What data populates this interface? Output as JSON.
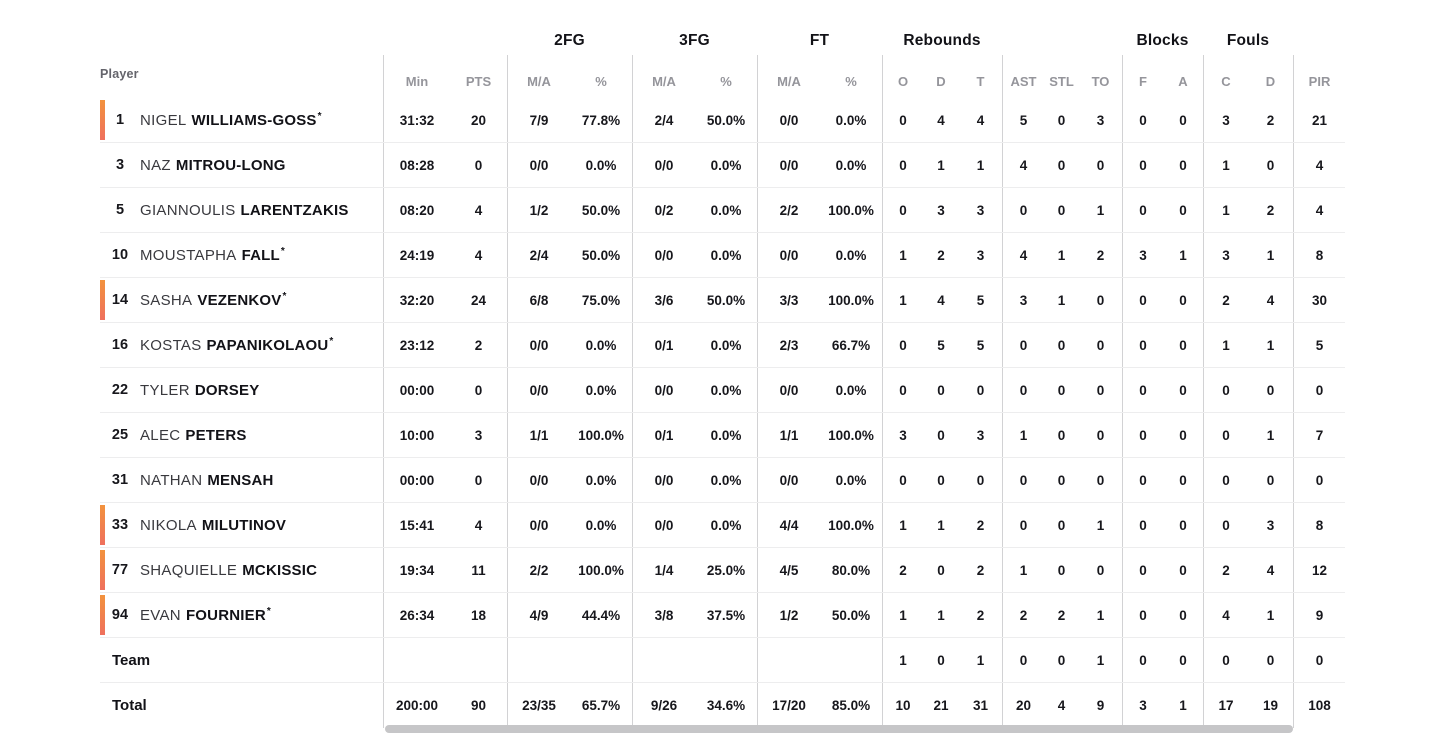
{
  "header": {
    "player_label": "Player",
    "groups": [
      {
        "label": "",
        "span": 3
      },
      {
        "label": "2FG",
        "span": 2
      },
      {
        "label": "3FG",
        "span": 2
      },
      {
        "label": "FT",
        "span": 2
      },
      {
        "label": "Rebounds",
        "span": 3
      },
      {
        "label": "",
        "span": 3
      },
      {
        "label": "Blocks",
        "span": 2
      },
      {
        "label": "Fouls",
        "span": 2
      },
      {
        "label": "",
        "span": 1
      }
    ],
    "stat_columns": [
      "Min",
      "PTS",
      "M/A",
      "%",
      "M/A",
      "%",
      "M/A",
      "%",
      "O",
      "D",
      "T",
      "AST",
      "STL",
      "TO",
      "F",
      "A",
      "C",
      "D",
      "PIR"
    ],
    "stat_keys": [
      "min",
      "pts",
      "2fg-ma",
      "2fg-pct",
      "3fg-ma",
      "3fg-pct",
      "ft-ma",
      "ft-pct",
      "reb-o",
      "reb-d",
      "reb-t",
      "ast",
      "stl",
      "to",
      "blk-f",
      "blk-a",
      "foul-c",
      "foul-d",
      "pir"
    ]
  },
  "players": [
    {
      "number": "1",
      "first_name": "NIGEL",
      "last_name": "WILLIAMS-GOSS",
      "starter": true,
      "on_court": true,
      "stats": [
        "31:32",
        "20",
        "7/9",
        "77.8%",
        "2/4",
        "50.0%",
        "0/0",
        "0.0%",
        "0",
        "4",
        "4",
        "5",
        "0",
        "3",
        "0",
        "0",
        "3",
        "2",
        "21"
      ]
    },
    {
      "number": "3",
      "first_name": "NAZ",
      "last_name": "MITROU-LONG",
      "starter": false,
      "on_court": false,
      "stats": [
        "08:28",
        "0",
        "0/0",
        "0.0%",
        "0/0",
        "0.0%",
        "0/0",
        "0.0%",
        "0",
        "1",
        "1",
        "4",
        "0",
        "0",
        "0",
        "0",
        "1",
        "0",
        "4"
      ]
    },
    {
      "number": "5",
      "first_name": "GIANNOULIS",
      "last_name": "LARENTZAKIS",
      "starter": false,
      "on_court": false,
      "stats": [
        "08:20",
        "4",
        "1/2",
        "50.0%",
        "0/2",
        "0.0%",
        "2/2",
        "100.0%",
        "0",
        "3",
        "3",
        "0",
        "0",
        "1",
        "0",
        "0",
        "1",
        "2",
        "4"
      ]
    },
    {
      "number": "10",
      "first_name": "MOUSTAPHA",
      "last_name": "FALL",
      "starter": true,
      "on_court": false,
      "stats": [
        "24:19",
        "4",
        "2/4",
        "50.0%",
        "0/0",
        "0.0%",
        "0/0",
        "0.0%",
        "1",
        "2",
        "3",
        "4",
        "1",
        "2",
        "3",
        "1",
        "3",
        "1",
        "8"
      ]
    },
    {
      "number": "14",
      "first_name": "SASHA",
      "last_name": "VEZENKOV",
      "starter": true,
      "on_court": true,
      "stats": [
        "32:20",
        "24",
        "6/8",
        "75.0%",
        "3/6",
        "50.0%",
        "3/3",
        "100.0%",
        "1",
        "4",
        "5",
        "3",
        "1",
        "0",
        "0",
        "0",
        "2",
        "4",
        "30"
      ]
    },
    {
      "number": "16",
      "first_name": "KOSTAS",
      "last_name": "PAPANIKOLAOU",
      "starter": true,
      "on_court": false,
      "stats": [
        "23:12",
        "2",
        "0/0",
        "0.0%",
        "0/1",
        "0.0%",
        "2/3",
        "66.7%",
        "0",
        "5",
        "5",
        "0",
        "0",
        "0",
        "0",
        "0",
        "1",
        "1",
        "5"
      ]
    },
    {
      "number": "22",
      "first_name": "TYLER",
      "last_name": "DORSEY",
      "starter": false,
      "on_court": false,
      "stats": [
        "00:00",
        "0",
        "0/0",
        "0.0%",
        "0/0",
        "0.0%",
        "0/0",
        "0.0%",
        "0",
        "0",
        "0",
        "0",
        "0",
        "0",
        "0",
        "0",
        "0",
        "0",
        "0"
      ]
    },
    {
      "number": "25",
      "first_name": "ALEC",
      "last_name": "PETERS",
      "starter": false,
      "on_court": false,
      "stats": [
        "10:00",
        "3",
        "1/1",
        "100.0%",
        "0/1",
        "0.0%",
        "1/1",
        "100.0%",
        "3",
        "0",
        "3",
        "1",
        "0",
        "0",
        "0",
        "0",
        "0",
        "1",
        "7"
      ]
    },
    {
      "number": "31",
      "first_name": "NATHAN",
      "last_name": "MENSAH",
      "starter": false,
      "on_court": false,
      "stats": [
        "00:00",
        "0",
        "0/0",
        "0.0%",
        "0/0",
        "0.0%",
        "0/0",
        "0.0%",
        "0",
        "0",
        "0",
        "0",
        "0",
        "0",
        "0",
        "0",
        "0",
        "0",
        "0"
      ]
    },
    {
      "number": "33",
      "first_name": "NIKOLA",
      "last_name": "MILUTINOV",
      "starter": false,
      "on_court": true,
      "stats": [
        "15:41",
        "4",
        "0/0",
        "0.0%",
        "0/0",
        "0.0%",
        "4/4",
        "100.0%",
        "1",
        "1",
        "2",
        "0",
        "0",
        "1",
        "0",
        "0",
        "0",
        "3",
        "8"
      ]
    },
    {
      "number": "77",
      "first_name": "SHAQUIELLE",
      "last_name": "MCKISSIC",
      "starter": false,
      "on_court": true,
      "stats": [
        "19:34",
        "11",
        "2/2",
        "100.0%",
        "1/4",
        "25.0%",
        "4/5",
        "80.0%",
        "2",
        "0",
        "2",
        "1",
        "0",
        "0",
        "0",
        "0",
        "2",
        "4",
        "12"
      ]
    },
    {
      "number": "94",
      "first_name": "EVAN",
      "last_name": "FOURNIER",
      "starter": true,
      "on_court": true,
      "stats": [
        "26:34",
        "18",
        "4/9",
        "44.4%",
        "3/8",
        "37.5%",
        "1/2",
        "50.0%",
        "1",
        "1",
        "2",
        "2",
        "2",
        "1",
        "0",
        "0",
        "4",
        "1",
        "9"
      ]
    }
  ],
  "summary_rows": [
    {
      "label": "Team",
      "stats": [
        "",
        "",
        "",
        "",
        "",
        "",
        "",
        "",
        "1",
        "0",
        "1",
        "0",
        "0",
        "1",
        "0",
        "0",
        "0",
        "0",
        "0"
      ]
    },
    {
      "label": "Total",
      "stats": [
        "200:00",
        "90",
        "23/35",
        "65.7%",
        "9/26",
        "34.6%",
        "17/20",
        "85.0%",
        "10",
        "21",
        "31",
        "20",
        "4",
        "9",
        "3",
        "1",
        "17",
        "19",
        "108"
      ]
    }
  ],
  "starter_mark": "*",
  "colors": {
    "on_court_accent_top": "#f2923d",
    "on_court_accent_bottom": "#ef705d",
    "header_text": "#121217",
    "subheader_text": "#95959b",
    "stat_text": "#17171c",
    "divider": "#d2d2d4",
    "row_separator": "#ededee",
    "scrollbar_thumb": "#c6c6c8"
  }
}
